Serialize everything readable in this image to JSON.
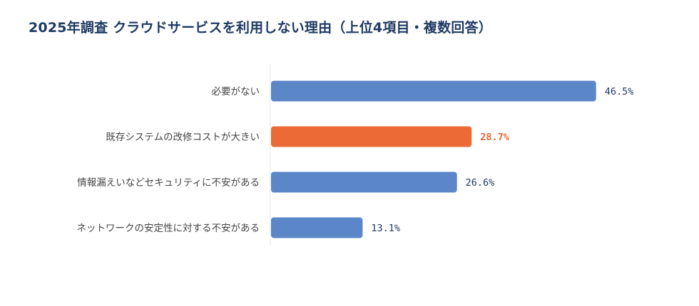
{
  "title": "2025年調査 クラウドサービスを利用しない理由（上位4項目・複数回答）",
  "chart_data": {
    "type": "bar",
    "orientation": "horizontal",
    "categories": [
      "必要がない",
      "既存システムの改修コストが大きい",
      "情報漏えいなどセキュリティに不安がある",
      "ネットワークの安定性に対する不安がある"
    ],
    "values": [
      46.5,
      28.7,
      26.6,
      13.1
    ],
    "value_labels": [
      "46.5%",
      "28.7%",
      "26.6%",
      "13.1%"
    ],
    "highlight_index": 1,
    "xlim": [
      0,
      50
    ],
    "grid": false,
    "legend": "none",
    "colors": {
      "bar": "#5b86c8",
      "highlight": "#ec6a36",
      "title": "#1f3a63",
      "value_text": "#1f3a63",
      "highlight_text": "#e8673a",
      "category_text": "#444444",
      "axis_line": "#e5e5e5"
    }
  }
}
